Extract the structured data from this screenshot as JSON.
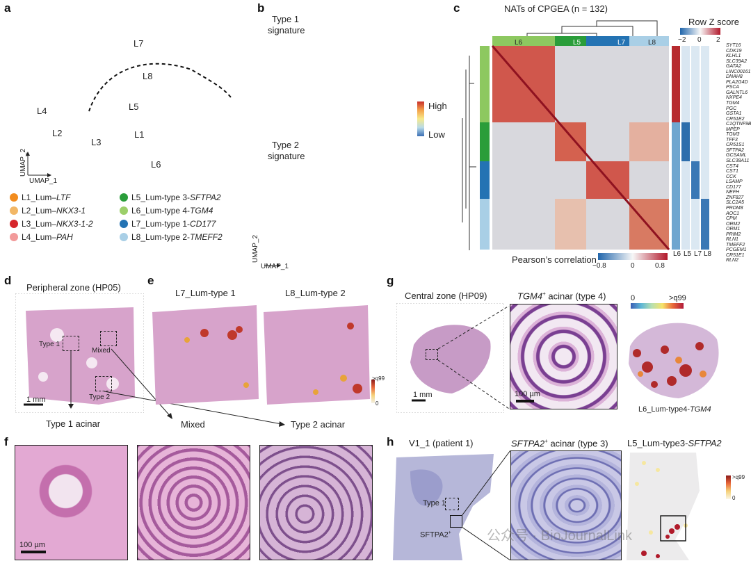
{
  "panels": {
    "a": "a",
    "b": "b",
    "c": "c",
    "d": "d",
    "e": "e",
    "f": "f",
    "g": "g",
    "h": "h"
  },
  "a": {
    "cluster_labels": [
      "L7",
      "L8",
      "L4",
      "L5",
      "L2",
      "L1",
      "L3",
      "L6"
    ],
    "axis_y": "UMAP_2",
    "axis_x": "UMAP_1",
    "legend": [
      {
        "id": "L1",
        "prefix": "L1_Lum–",
        "gene": "LTF",
        "color": "#f28c1e"
      },
      {
        "id": "L2",
        "prefix": "L2_Lum–",
        "gene": "NKX3-1",
        "color": "#f2b766"
      },
      {
        "id": "L3",
        "prefix": "L3_Lum–",
        "gene": "NKX3-1-2",
        "color": "#d6262b"
      },
      {
        "id": "L4",
        "prefix": "L4_Lum–",
        "gene": "PAH",
        "color": "#f29a9a"
      },
      {
        "id": "L5",
        "prefix": "L5_Lum-type 3-",
        "gene": "SFTPA2",
        "color": "#2a9d3a"
      },
      {
        "id": "L6",
        "prefix": "L6_Lum-type 4-",
        "gene": "TGM4",
        "color": "#9ccf6a"
      },
      {
        "id": "L7",
        "prefix": "L7_Lum-type 1-",
        "gene": "CD177",
        "color": "#2473b3"
      },
      {
        "id": "L8",
        "prefix": "L8_Lum-type 2-",
        "gene": "TMEFF2",
        "color": "#a9cfe6"
      }
    ]
  },
  "b": {
    "sig1_line1": "Type 1",
    "sig1_line2": "signature",
    "sig2_line1": "Type 2",
    "sig2_line2": "signature",
    "scale_high": "High",
    "scale_low": "Low",
    "axis_y": "UMAP_2",
    "axis_x": "UMAP_1"
  },
  "c": {
    "title": "NATs of CPGEA (n = 132)",
    "zscore_title": "Row Z score",
    "zscore_ticks": [
      "−2",
      "0",
      "2"
    ],
    "top_groups": [
      "L6",
      "L5",
      "L7",
      "L8"
    ],
    "bottom_groups": [
      "L6",
      "L5",
      "L7",
      "L8"
    ],
    "pearson_label": "Pearson’s correlation",
    "pearson_ticks": [
      "−0.8",
      "0",
      "0.8"
    ],
    "genes": [
      "SYT16",
      "CDK19",
      "KLHL1",
      "SLC39A2",
      "GATA2",
      "LINC00161",
      "DNAH8",
      "PLA2G4D",
      "PSCA",
      "GALNTL6",
      "NXPE4",
      "TGM4",
      "PGC",
      "GSTA1",
      "CR51E2",
      "C1QTNF9B",
      "MPEP",
      "TGM3",
      "TFF3",
      "CR51S1",
      "SFTPA2",
      "GCSAML",
      "SLC38A11",
      "CST4",
      "CST1",
      "CCK",
      "LSAMP",
      "CD177",
      "NEFH",
      "ZNF827",
      "SLC2A5",
      "PRDM8",
      "AOC1",
      "CPM",
      "ORM2",
      "ORM1",
      "PRIM2",
      "RLN1",
      "TMEFF2",
      "PCGEM1",
      "CR51E1",
      "RLN2"
    ]
  },
  "d": {
    "title": "Peripheral zone (HP05)",
    "box1": "Type 1",
    "box2": "Mixed",
    "box3": "Type 2",
    "scale": "1 mm",
    "arrow1": "Type 1 acinar",
    "arrow2": "Mixed",
    "arrow3": "Type 2 acinar"
  },
  "e": {
    "title1": "L7_Lum-type 1",
    "title2": "L8_Lum-type 2",
    "scale_top": ">q99",
    "scale_bottom": "0"
  },
  "g": {
    "title": "Central zone (HP09)",
    "zoom_gene": "TGM4",
    "zoom_sup": "+",
    "zoom_rest": " acinar (type 4)",
    "scale1": "1 mm",
    "scale2": "100 µm",
    "scale_left": "0",
    "scale_right": ">q99",
    "cluster_prefix": "L6_Lum-type4-",
    "cluster_gene": "TGM4"
  },
  "f": {
    "scale": "100 µm"
  },
  "h": {
    "title": "V1_1 (patient 1)",
    "zoom_gene": "SFTPA2",
    "zoom_sup": "+",
    "zoom_rest": " acinar (type 3)",
    "cluster_prefix": "L5_Lum-type3-",
    "cluster_gene": "SFTPA2",
    "box1": "Type 1",
    "box2": "SFTPA2",
    "box2_sup": "+",
    "scale_top": ">q99",
    "scale_bottom": "0"
  },
  "watermark": "公众号 · BioJournalLink",
  "colors": {
    "heat_high": "#b2182b",
    "heat_low": "#2166ac",
    "he_pink": "#d9a0c8"
  }
}
